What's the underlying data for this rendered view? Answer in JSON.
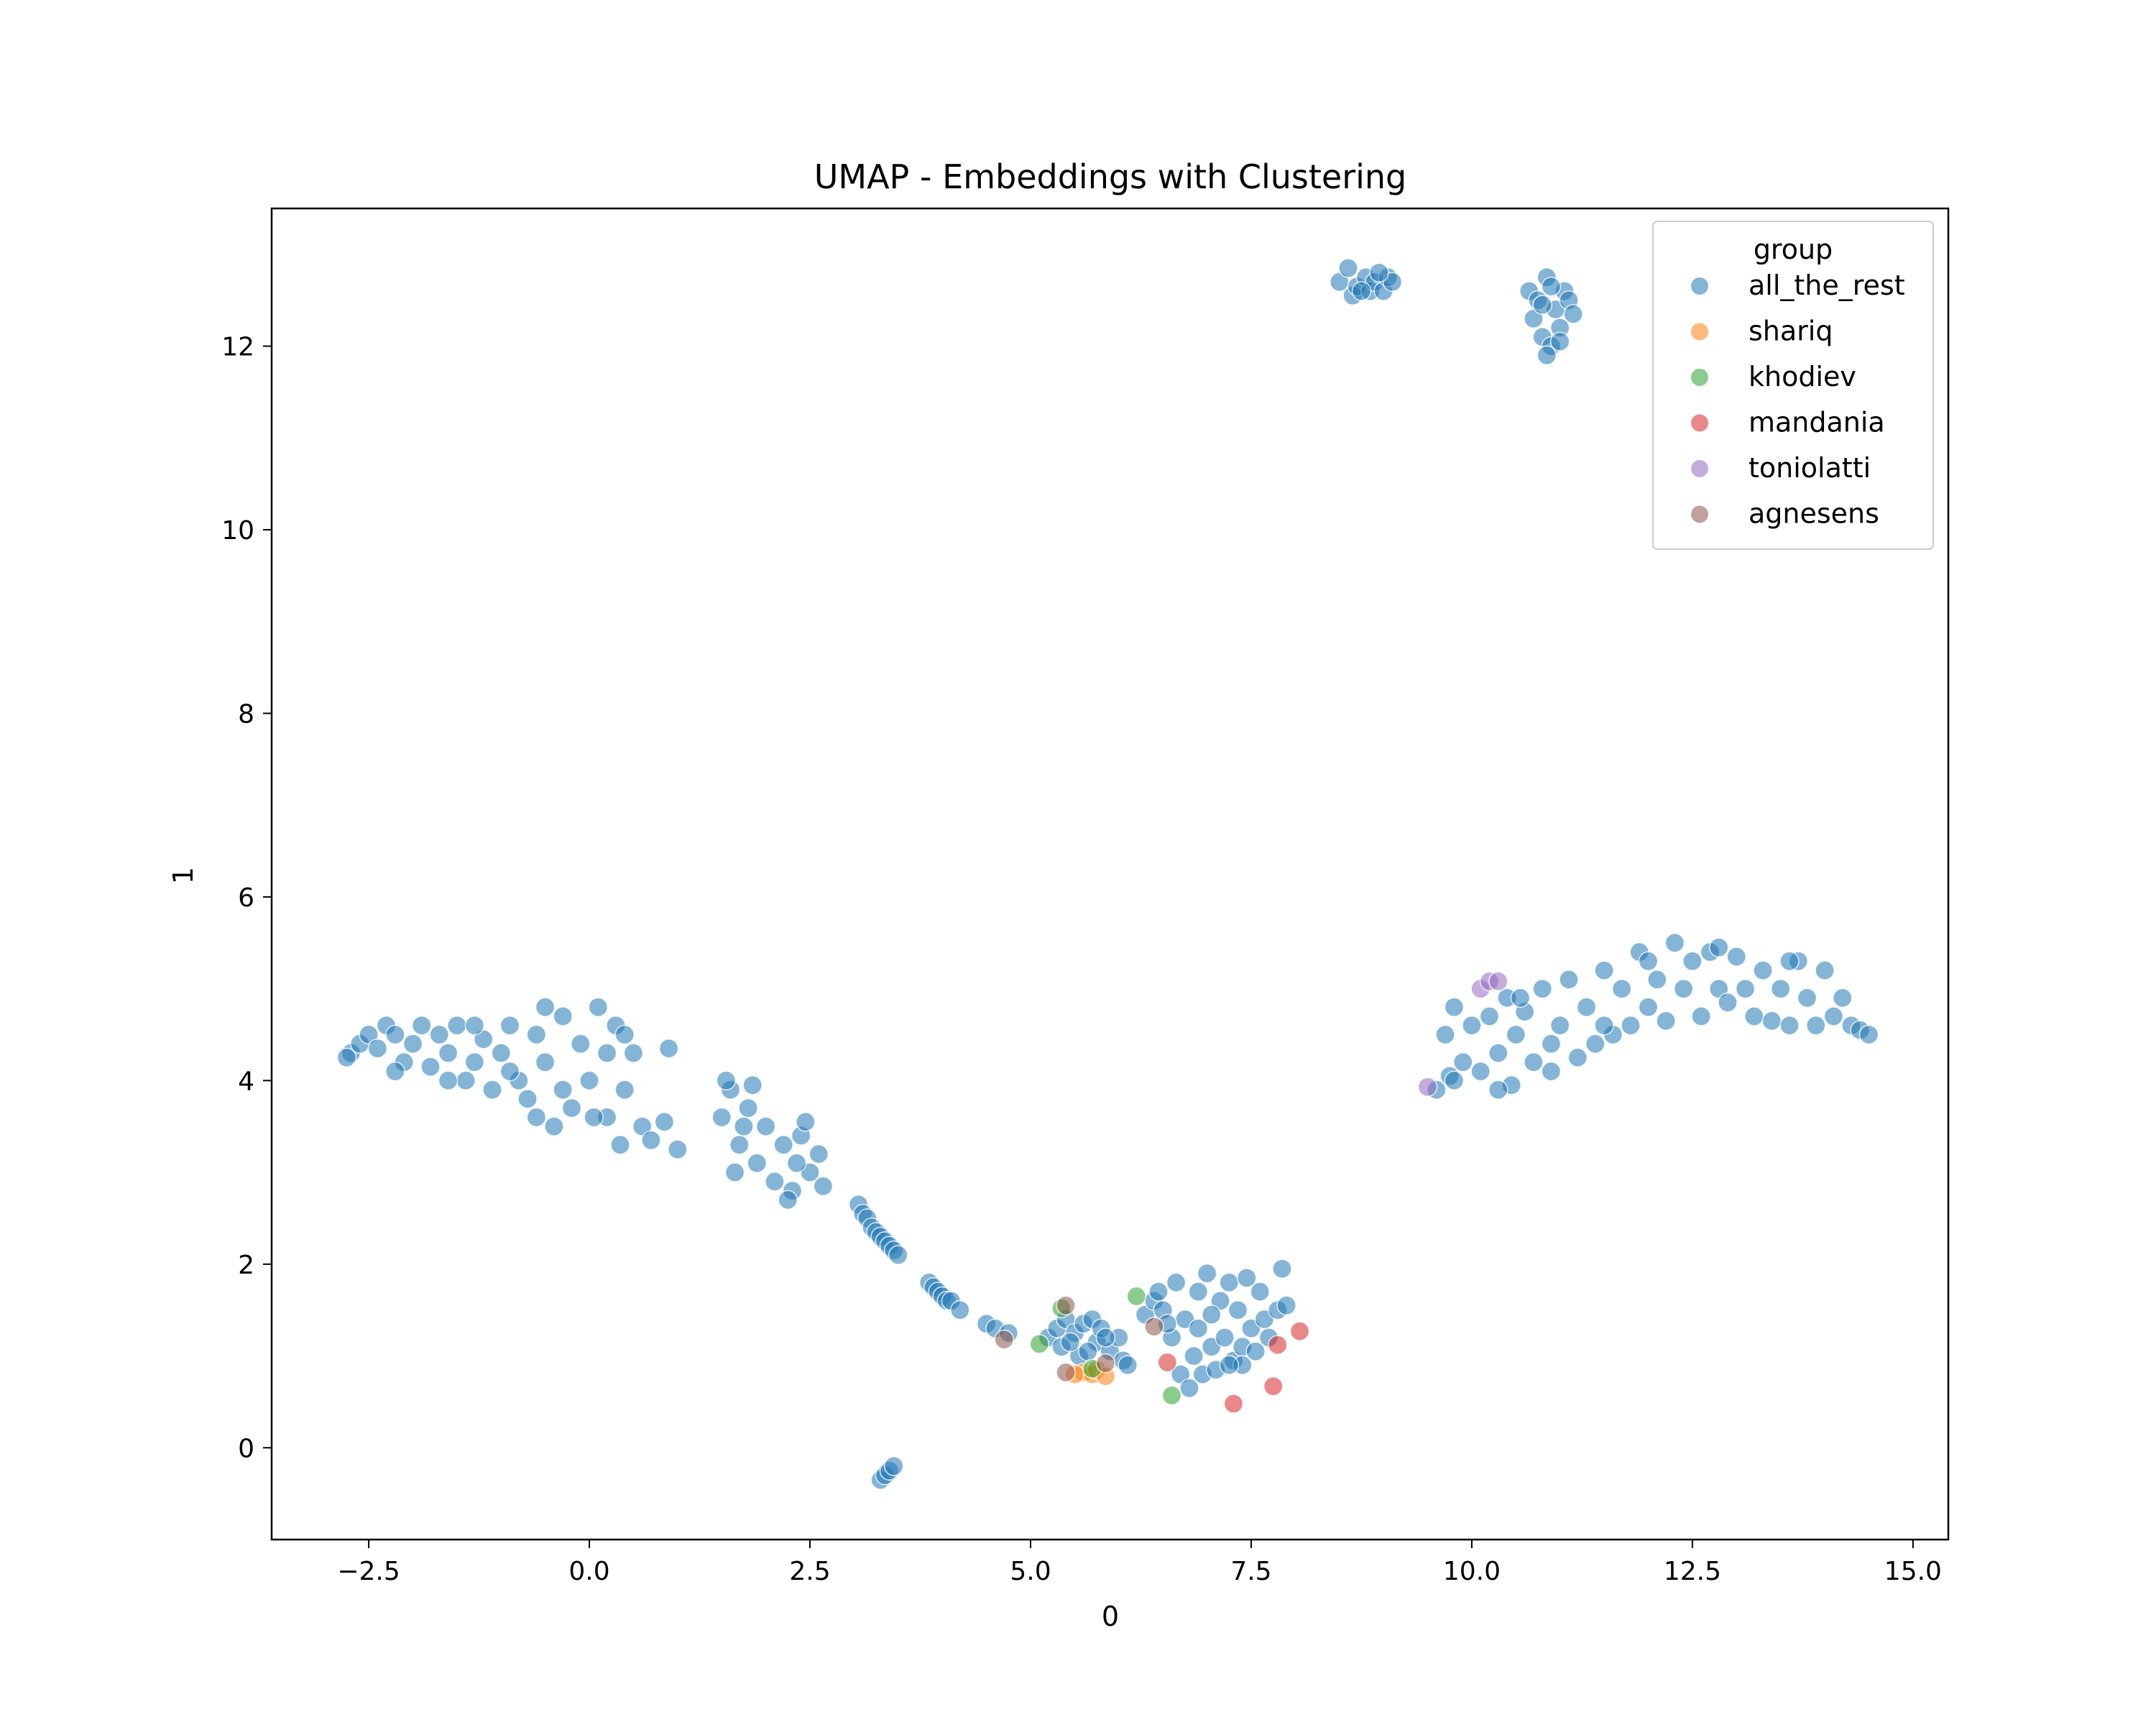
{
  "chart_data": {
    "type": "scatter",
    "title": "UMAP - Embeddings with Clustering",
    "xlabel": "0",
    "ylabel": "1",
    "xlim": [
      -3.6,
      15.4
    ],
    "ylim": [
      -1.0,
      13.5
    ],
    "xticks": [
      -2.5,
      0.0,
      2.5,
      5.0,
      7.5,
      10.0,
      12.5,
      15.0
    ],
    "xtick_labels": [
      "−2.5",
      "0.0",
      "2.5",
      "5.0",
      "7.5",
      "10.0",
      "12.5",
      "15.0"
    ],
    "yticks": [
      0,
      2,
      4,
      6,
      8,
      10,
      12
    ],
    "ytick_labels": [
      "0",
      "2",
      "4",
      "6",
      "8",
      "10",
      "12"
    ],
    "grid": false,
    "legend": {
      "title": "group",
      "placement": "top-right"
    },
    "series": [
      {
        "name": "all_the_rest",
        "color": "#1f77b4",
        "points": [
          [
            -2.7,
            4.3
          ],
          [
            -2.6,
            4.4
          ],
          [
            -2.5,
            4.5
          ],
          [
            -2.4,
            4.35
          ],
          [
            -2.3,
            4.6
          ],
          [
            -2.2,
            4.5
          ],
          [
            -2.1,
            4.2
          ],
          [
            -2.0,
            4.4
          ],
          [
            -1.9,
            4.6
          ],
          [
            -1.8,
            4.15
          ],
          [
            -1.7,
            4.5
          ],
          [
            -1.6,
            4.3
          ],
          [
            -1.5,
            4.6
          ],
          [
            -1.4,
            4.0
          ],
          [
            -1.3,
            4.2
          ],
          [
            -1.2,
            4.45
          ],
          [
            -1.1,
            3.9
          ],
          [
            -1.0,
            4.3
          ],
          [
            -0.9,
            4.6
          ],
          [
            -0.8,
            4.0
          ],
          [
            -0.7,
            3.8
          ],
          [
            -0.6,
            4.5
          ],
          [
            -0.5,
            4.2
          ],
          [
            -0.4,
            3.5
          ],
          [
            -0.3,
            4.7
          ],
          [
            -0.2,
            3.7
          ],
          [
            -0.1,
            4.4
          ],
          [
            0.0,
            4.0
          ],
          [
            0.1,
            4.8
          ],
          [
            0.2,
            3.6
          ],
          [
            0.3,
            4.6
          ],
          [
            0.4,
            3.9
          ],
          [
            0.5,
            4.3
          ],
          [
            0.6,
            3.5
          ],
          [
            0.7,
            3.35
          ],
          [
            -2.2,
            4.1
          ],
          [
            -1.6,
            4.0
          ],
          [
            -0.9,
            4.1
          ],
          [
            -0.3,
            3.9
          ],
          [
            0.2,
            4.3
          ],
          [
            -0.6,
            3.6
          ],
          [
            0.4,
            4.5
          ],
          [
            0.9,
            4.35
          ],
          [
            1.0,
            3.25
          ],
          [
            0.85,
            3.55
          ],
          [
            -2.75,
            4.25
          ],
          [
            -1.3,
            4.6
          ],
          [
            0.05,
            3.6
          ],
          [
            -0.5,
            4.8
          ],
          [
            0.35,
            3.3
          ],
          [
            1.5,
            3.6
          ],
          [
            1.6,
            3.9
          ],
          [
            1.7,
            3.3
          ],
          [
            1.8,
            3.7
          ],
          [
            1.9,
            3.1
          ],
          [
            2.0,
            3.5
          ],
          [
            2.1,
            2.9
          ],
          [
            2.2,
            3.3
          ],
          [
            2.3,
            2.8
          ],
          [
            2.4,
            3.4
          ],
          [
            2.5,
            3.0
          ],
          [
            2.6,
            3.2
          ],
          [
            2.65,
            2.85
          ],
          [
            1.65,
            3.0
          ],
          [
            2.25,
            2.7
          ],
          [
            1.55,
            4.0
          ],
          [
            1.85,
            3.95
          ],
          [
            2.45,
            3.55
          ],
          [
            1.75,
            3.5
          ],
          [
            2.35,
            3.1
          ],
          [
            3.05,
            2.65
          ],
          [
            3.1,
            2.55
          ],
          [
            3.15,
            2.5
          ],
          [
            3.2,
            2.4
          ],
          [
            3.25,
            2.35
          ],
          [
            3.3,
            2.3
          ],
          [
            3.35,
            2.25
          ],
          [
            3.4,
            2.2
          ],
          [
            3.45,
            2.15
          ],
          [
            3.5,
            2.1
          ],
          [
            3.85,
            1.8
          ],
          [
            3.9,
            1.75
          ],
          [
            3.95,
            1.7
          ],
          [
            4.0,
            1.65
          ],
          [
            4.05,
            1.6
          ],
          [
            4.1,
            1.6
          ],
          [
            4.2,
            1.5
          ],
          [
            3.3,
            -0.35
          ],
          [
            3.35,
            -0.3
          ],
          [
            3.4,
            -0.25
          ],
          [
            3.45,
            -0.2
          ],
          [
            4.5,
            1.35
          ],
          [
            4.6,
            1.3
          ],
          [
            4.75,
            1.25
          ],
          [
            5.2,
            1.2
          ],
          [
            5.3,
            1.3
          ],
          [
            5.35,
            1.1
          ],
          [
            5.4,
            1.4
          ],
          [
            5.5,
            1.25
          ],
          [
            5.55,
            1.0
          ],
          [
            5.6,
            1.35
          ],
          [
            5.7,
            1.4
          ],
          [
            5.75,
            1.15
          ],
          [
            5.8,
            1.3
          ],
          [
            5.9,
            1.05
          ],
          [
            6.0,
            1.2
          ],
          [
            6.05,
            0.95
          ],
          [
            6.1,
            0.9
          ],
          [
            5.45,
            1.15
          ],
          [
            5.65,
            1.05
          ],
          [
            5.85,
            1.2
          ],
          [
            6.3,
            1.45
          ],
          [
            6.4,
            1.6
          ],
          [
            6.45,
            1.7
          ],
          [
            6.5,
            1.5
          ],
          [
            6.6,
            1.2
          ],
          [
            6.65,
            1.8
          ],
          [
            6.7,
            0.8
          ],
          [
            6.75,
            1.4
          ],
          [
            6.8,
            0.65
          ],
          [
            6.85,
            1.0
          ],
          [
            6.9,
            1.7
          ],
          [
            6.95,
            0.8
          ],
          [
            7.0,
            1.9
          ],
          [
            7.05,
            1.1
          ],
          [
            7.1,
            0.85
          ],
          [
            7.15,
            1.6
          ],
          [
            7.2,
            1.2
          ],
          [
            7.25,
            1.8
          ],
          [
            7.3,
            0.95
          ],
          [
            7.35,
            1.5
          ],
          [
            7.4,
            1.1
          ],
          [
            7.45,
            1.85
          ],
          [
            7.5,
            1.3
          ],
          [
            7.55,
            1.05
          ],
          [
            7.6,
            1.7
          ],
          [
            7.65,
            1.4
          ],
          [
            7.7,
            1.2
          ],
          [
            7.8,
            1.5
          ],
          [
            7.85,
            1.95
          ],
          [
            7.9,
            1.55
          ],
          [
            6.55,
            1.35
          ],
          [
            7.05,
            1.45
          ],
          [
            7.4,
            0.9
          ],
          [
            6.9,
            1.3
          ],
          [
            7.25,
            0.9
          ],
          [
            8.5,
            12.7
          ],
          [
            8.6,
            12.85
          ],
          [
            8.65,
            12.55
          ],
          [
            8.7,
            12.65
          ],
          [
            8.8,
            12.75
          ],
          [
            8.85,
            12.6
          ],
          [
            8.9,
            12.7
          ],
          [
            9.0,
            12.6
          ],
          [
            9.05,
            12.75
          ],
          [
            9.1,
            12.7
          ],
          [
            8.75,
            12.6
          ],
          [
            8.95,
            12.8
          ],
          [
            10.65,
            12.6
          ],
          [
            10.7,
            12.3
          ],
          [
            10.75,
            12.5
          ],
          [
            10.8,
            12.1
          ],
          [
            10.85,
            12.75
          ],
          [
            10.9,
            12.0
          ],
          [
            10.95,
            12.4
          ],
          [
            11.0,
            12.2
          ],
          [
            11.05,
            12.6
          ],
          [
            11.1,
            12.5
          ],
          [
            11.15,
            12.35
          ],
          [
            10.8,
            12.45
          ],
          [
            10.9,
            12.65
          ],
          [
            11.0,
            12.05
          ],
          [
            10.85,
            11.9
          ],
          [
            9.6,
            3.9
          ],
          [
            9.7,
            4.5
          ],
          [
            9.75,
            4.05
          ],
          [
            9.8,
            4.8
          ],
          [
            9.9,
            4.2
          ],
          [
            10.0,
            4.6
          ],
          [
            10.1,
            4.1
          ],
          [
            10.2,
            4.7
          ],
          [
            10.3,
            4.3
          ],
          [
            10.4,
            4.9
          ],
          [
            10.45,
            3.95
          ],
          [
            10.5,
            4.5
          ],
          [
            10.6,
            4.75
          ],
          [
            10.7,
            4.2
          ],
          [
            10.8,
            5.0
          ],
          [
            10.9,
            4.1
          ],
          [
            11.0,
            4.6
          ],
          [
            11.1,
            5.1
          ],
          [
            11.2,
            4.25
          ],
          [
            11.3,
            4.8
          ],
          [
            11.4,
            4.4
          ],
          [
            11.5,
            5.2
          ],
          [
            11.6,
            4.5
          ],
          [
            11.7,
            5.0
          ],
          [
            11.8,
            4.6
          ],
          [
            11.9,
            5.4
          ],
          [
            12.0,
            4.8
          ],
          [
            12.1,
            5.1
          ],
          [
            12.2,
            4.65
          ],
          [
            12.3,
            5.5
          ],
          [
            12.4,
            5.0
          ],
          [
            12.5,
            5.3
          ],
          [
            12.6,
            4.7
          ],
          [
            12.7,
            5.4
          ],
          [
            12.8,
            5.0
          ],
          [
            12.9,
            4.85
          ],
          [
            13.0,
            5.35
          ],
          [
            13.1,
            5.0
          ],
          [
            13.2,
            4.7
          ],
          [
            13.3,
            5.2
          ],
          [
            13.4,
            4.65
          ],
          [
            13.5,
            5.0
          ],
          [
            13.6,
            4.6
          ],
          [
            13.7,
            5.3
          ],
          [
            13.8,
            4.9
          ],
          [
            13.9,
            4.6
          ],
          [
            14.0,
            5.2
          ],
          [
            14.1,
            4.7
          ],
          [
            14.2,
            4.9
          ],
          [
            14.3,
            4.6
          ],
          [
            14.4,
            4.55
          ],
          [
            14.5,
            4.5
          ],
          [
            10.3,
            3.9
          ],
          [
            10.9,
            4.4
          ],
          [
            11.5,
            4.6
          ],
          [
            12.0,
            5.3
          ],
          [
            12.8,
            5.45
          ],
          [
            13.6,
            5.3
          ],
          [
            9.8,
            4.0
          ],
          [
            10.55,
            4.9
          ]
        ]
      },
      {
        "name": "shariq",
        "color": "#ff7f0e",
        "points": [
          [
            5.6,
            0.82
          ],
          [
            5.7,
            0.8
          ],
          [
            5.75,
            0.85
          ],
          [
            5.85,
            0.78
          ],
          [
            5.5,
            0.8
          ]
        ]
      },
      {
        "name": "khodiev",
        "color": "#2ca02c",
        "points": [
          [
            5.1,
            1.13
          ],
          [
            5.35,
            1.52
          ],
          [
            5.7,
            0.86
          ],
          [
            6.2,
            1.65
          ],
          [
            6.6,
            0.57
          ]
        ]
      },
      {
        "name": "mandania",
        "color": "#d62728",
        "points": [
          [
            6.55,
            0.93
          ],
          [
            7.3,
            0.48
          ],
          [
            7.75,
            0.67
          ],
          [
            7.8,
            1.12
          ],
          [
            8.05,
            1.27
          ]
        ]
      },
      {
        "name": "toniolatti",
        "color": "#9467bd",
        "points": [
          [
            9.5,
            3.93
          ],
          [
            10.1,
            5.0
          ],
          [
            10.2,
            5.08
          ],
          [
            10.3,
            5.08
          ]
        ]
      },
      {
        "name": "agnesens",
        "color": "#8c564b",
        "points": [
          [
            4.7,
            1.18
          ],
          [
            5.4,
            0.82
          ],
          [
            5.4,
            1.55
          ],
          [
            5.85,
            0.92
          ],
          [
            6.4,
            1.32
          ]
        ]
      }
    ]
  }
}
